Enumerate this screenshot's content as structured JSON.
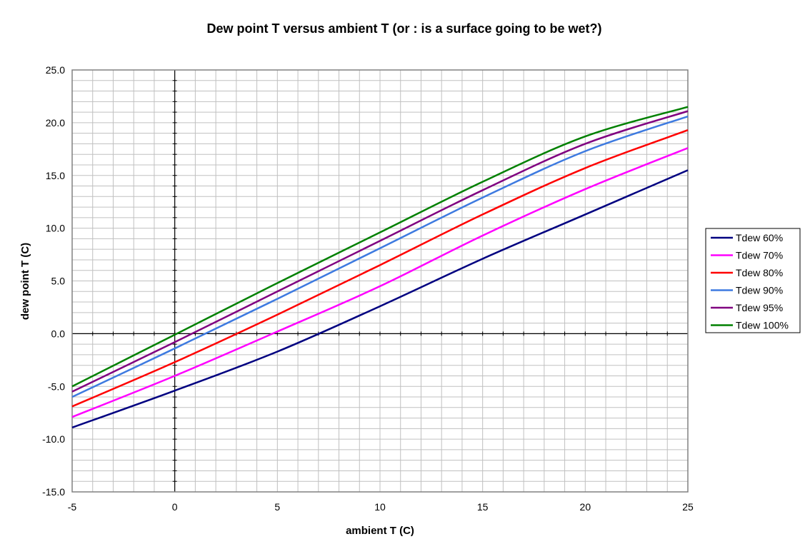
{
  "chart_data": {
    "type": "line",
    "title": "Dew point T versus ambient T (or : is a surface going to be wet?)",
    "xlabel": "ambient T (C)",
    "ylabel": "dew point T (C)",
    "xlim": [
      -5,
      25
    ],
    "ylim": [
      -15,
      25
    ],
    "x_ticks": [
      "-5",
      "0",
      "5",
      "10",
      "15",
      "20",
      "25"
    ],
    "y_ticks": [
      "25.0",
      "20.0",
      "15.0",
      "10.0",
      "5.0",
      "0.0",
      "-5.0",
      "-10.0",
      "-15.0"
    ],
    "grid": true,
    "legend_position": "right",
    "x": [
      -5,
      0,
      5,
      10,
      15,
      20,
      25
    ],
    "series": [
      {
        "name": "Tdew 60%",
        "color": "#000080",
        "values": [
          -8.9,
          -5.4,
          -1.7,
          2.6,
          7.1,
          11.3,
          15.5
        ]
      },
      {
        "name": "Tdew 70%",
        "color": "#ff00ff",
        "values": [
          -7.9,
          -4.0,
          0.2,
          4.5,
          9.3,
          13.7,
          17.6
        ]
      },
      {
        "name": "Tdew 80%",
        "color": "#ff0000",
        "values": [
          -6.9,
          -2.7,
          1.8,
          6.5,
          11.3,
          15.7,
          19.3
        ]
      },
      {
        "name": "Tdew 90%",
        "color": "#3d7ae0",
        "values": [
          -6.0,
          -1.4,
          3.3,
          8.1,
          12.9,
          17.3,
          20.6
        ]
      },
      {
        "name": "Tdew 95%",
        "color": "#800080",
        "values": [
          -5.5,
          -0.8,
          4.0,
          8.8,
          13.6,
          18.0,
          21.1
        ]
      },
      {
        "name": "Tdew 100%",
        "color": "#008000",
        "values": [
          -5.0,
          -0.1,
          4.8,
          9.6,
          14.4,
          18.7,
          21.5
        ]
      }
    ]
  }
}
